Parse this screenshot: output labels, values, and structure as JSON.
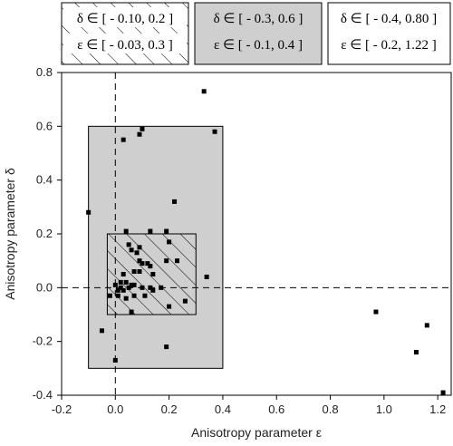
{
  "chart_data": {
    "type": "scatter",
    "title": "",
    "xlabel": "Anisotropy parameter ε",
    "ylabel": "Anisotropy parameter δ",
    "xlim": [
      -0.2,
      1.25
    ],
    "ylim": [
      -0.4,
      0.8
    ],
    "x_ticks": [
      "-0.2",
      "0.0",
      "0.2",
      "0.4",
      "0.6",
      "0.8",
      "1.0",
      "1.2"
    ],
    "y_ticks": [
      "-0.4",
      "-0.2",
      "0.0",
      "0.2",
      "0.4",
      "0.6",
      "0.8"
    ],
    "grid": false,
    "reference_lines": {
      "x": 0.0,
      "y": 0.0,
      "style": "dashed"
    },
    "regions": [
      {
        "fill": "hatched",
        "delta_text": "δ ∈ [ - 0.10, 0.2 ]",
        "epsilon_text": "ε ∈ [ - 0.03, 0.3 ]",
        "delta_range": [
          -0.1,
          0.2
        ],
        "epsilon_range": [
          -0.03,
          0.3
        ]
      },
      {
        "fill": "gray",
        "delta_text": "δ ∈ [ - 0.3, 0.6 ]",
        "epsilon_text": "ε ∈ [ - 0.1, 0.4 ]",
        "delta_range": [
          -0.3,
          0.6
        ],
        "epsilon_range": [
          -0.1,
          0.4
        ]
      },
      {
        "fill": "none",
        "delta_text": "δ ∈ [ - 0.4, 0.80 ]",
        "epsilon_text": "ε ∈ [ - 0.2, 1.22 ]",
        "delta_range": [
          -0.4,
          0.8
        ],
        "epsilon_range": [
          -0.2,
          1.22
        ]
      }
    ],
    "points": [
      [
        0.33,
        0.73
      ],
      [
        0.37,
        0.58
      ],
      [
        0.1,
        0.59
      ],
      [
        0.09,
        0.57
      ],
      [
        0.03,
        0.55
      ],
      [
        0.22,
        0.32
      ],
      [
        -0.1,
        0.28
      ],
      [
        0.04,
        0.21
      ],
      [
        0.13,
        0.21
      ],
      [
        0.19,
        0.21
      ],
      [
        0.05,
        0.16
      ],
      [
        0.06,
        0.14
      ],
      [
        0.08,
        0.13
      ],
      [
        0.09,
        0.15
      ],
      [
        0.2,
        0.17
      ],
      [
        0.09,
        0.1
      ],
      [
        0.1,
        0.09
      ],
      [
        0.12,
        0.09
      ],
      [
        0.13,
        0.08
      ],
      [
        0.19,
        0.1
      ],
      [
        0.23,
        0.1
      ],
      [
        0.07,
        0.06
      ],
      [
        0.09,
        0.06
      ],
      [
        0.03,
        0.05
      ],
      [
        0.14,
        0.05
      ],
      [
        0.34,
        0.04
      ],
      [
        0.02,
        0.02
      ],
      [
        0.04,
        0.02
      ],
      [
        0.06,
        0.01
      ],
      [
        0.0,
        0.01
      ],
      [
        0.02,
        0.0
      ],
      [
        0.05,
        0.0
      ],
      [
        0.07,
        0.01
      ],
      [
        0.1,
        0.0
      ],
      [
        0.01,
        -0.01
      ],
      [
        0.03,
        -0.01
      ],
      [
        0.13,
        0.0
      ],
      [
        0.14,
        -0.01
      ],
      [
        0.17,
        0.0
      ],
      [
        -0.02,
        -0.03
      ],
      [
        0.01,
        -0.03
      ],
      [
        0.04,
        -0.04
      ],
      [
        0.07,
        -0.03
      ],
      [
        0.11,
        -0.03
      ],
      [
        0.26,
        -0.05
      ],
      [
        0.06,
        -0.09
      ],
      [
        0.2,
        -0.07
      ],
      [
        -0.05,
        -0.16
      ],
      [
        0.19,
        -0.22
      ],
      [
        0.0,
        -0.27
      ],
      [
        0.97,
        -0.09
      ],
      [
        1.16,
        -0.14
      ],
      [
        1.12,
        -0.24
      ],
      [
        1.22,
        -0.39
      ]
    ]
  }
}
